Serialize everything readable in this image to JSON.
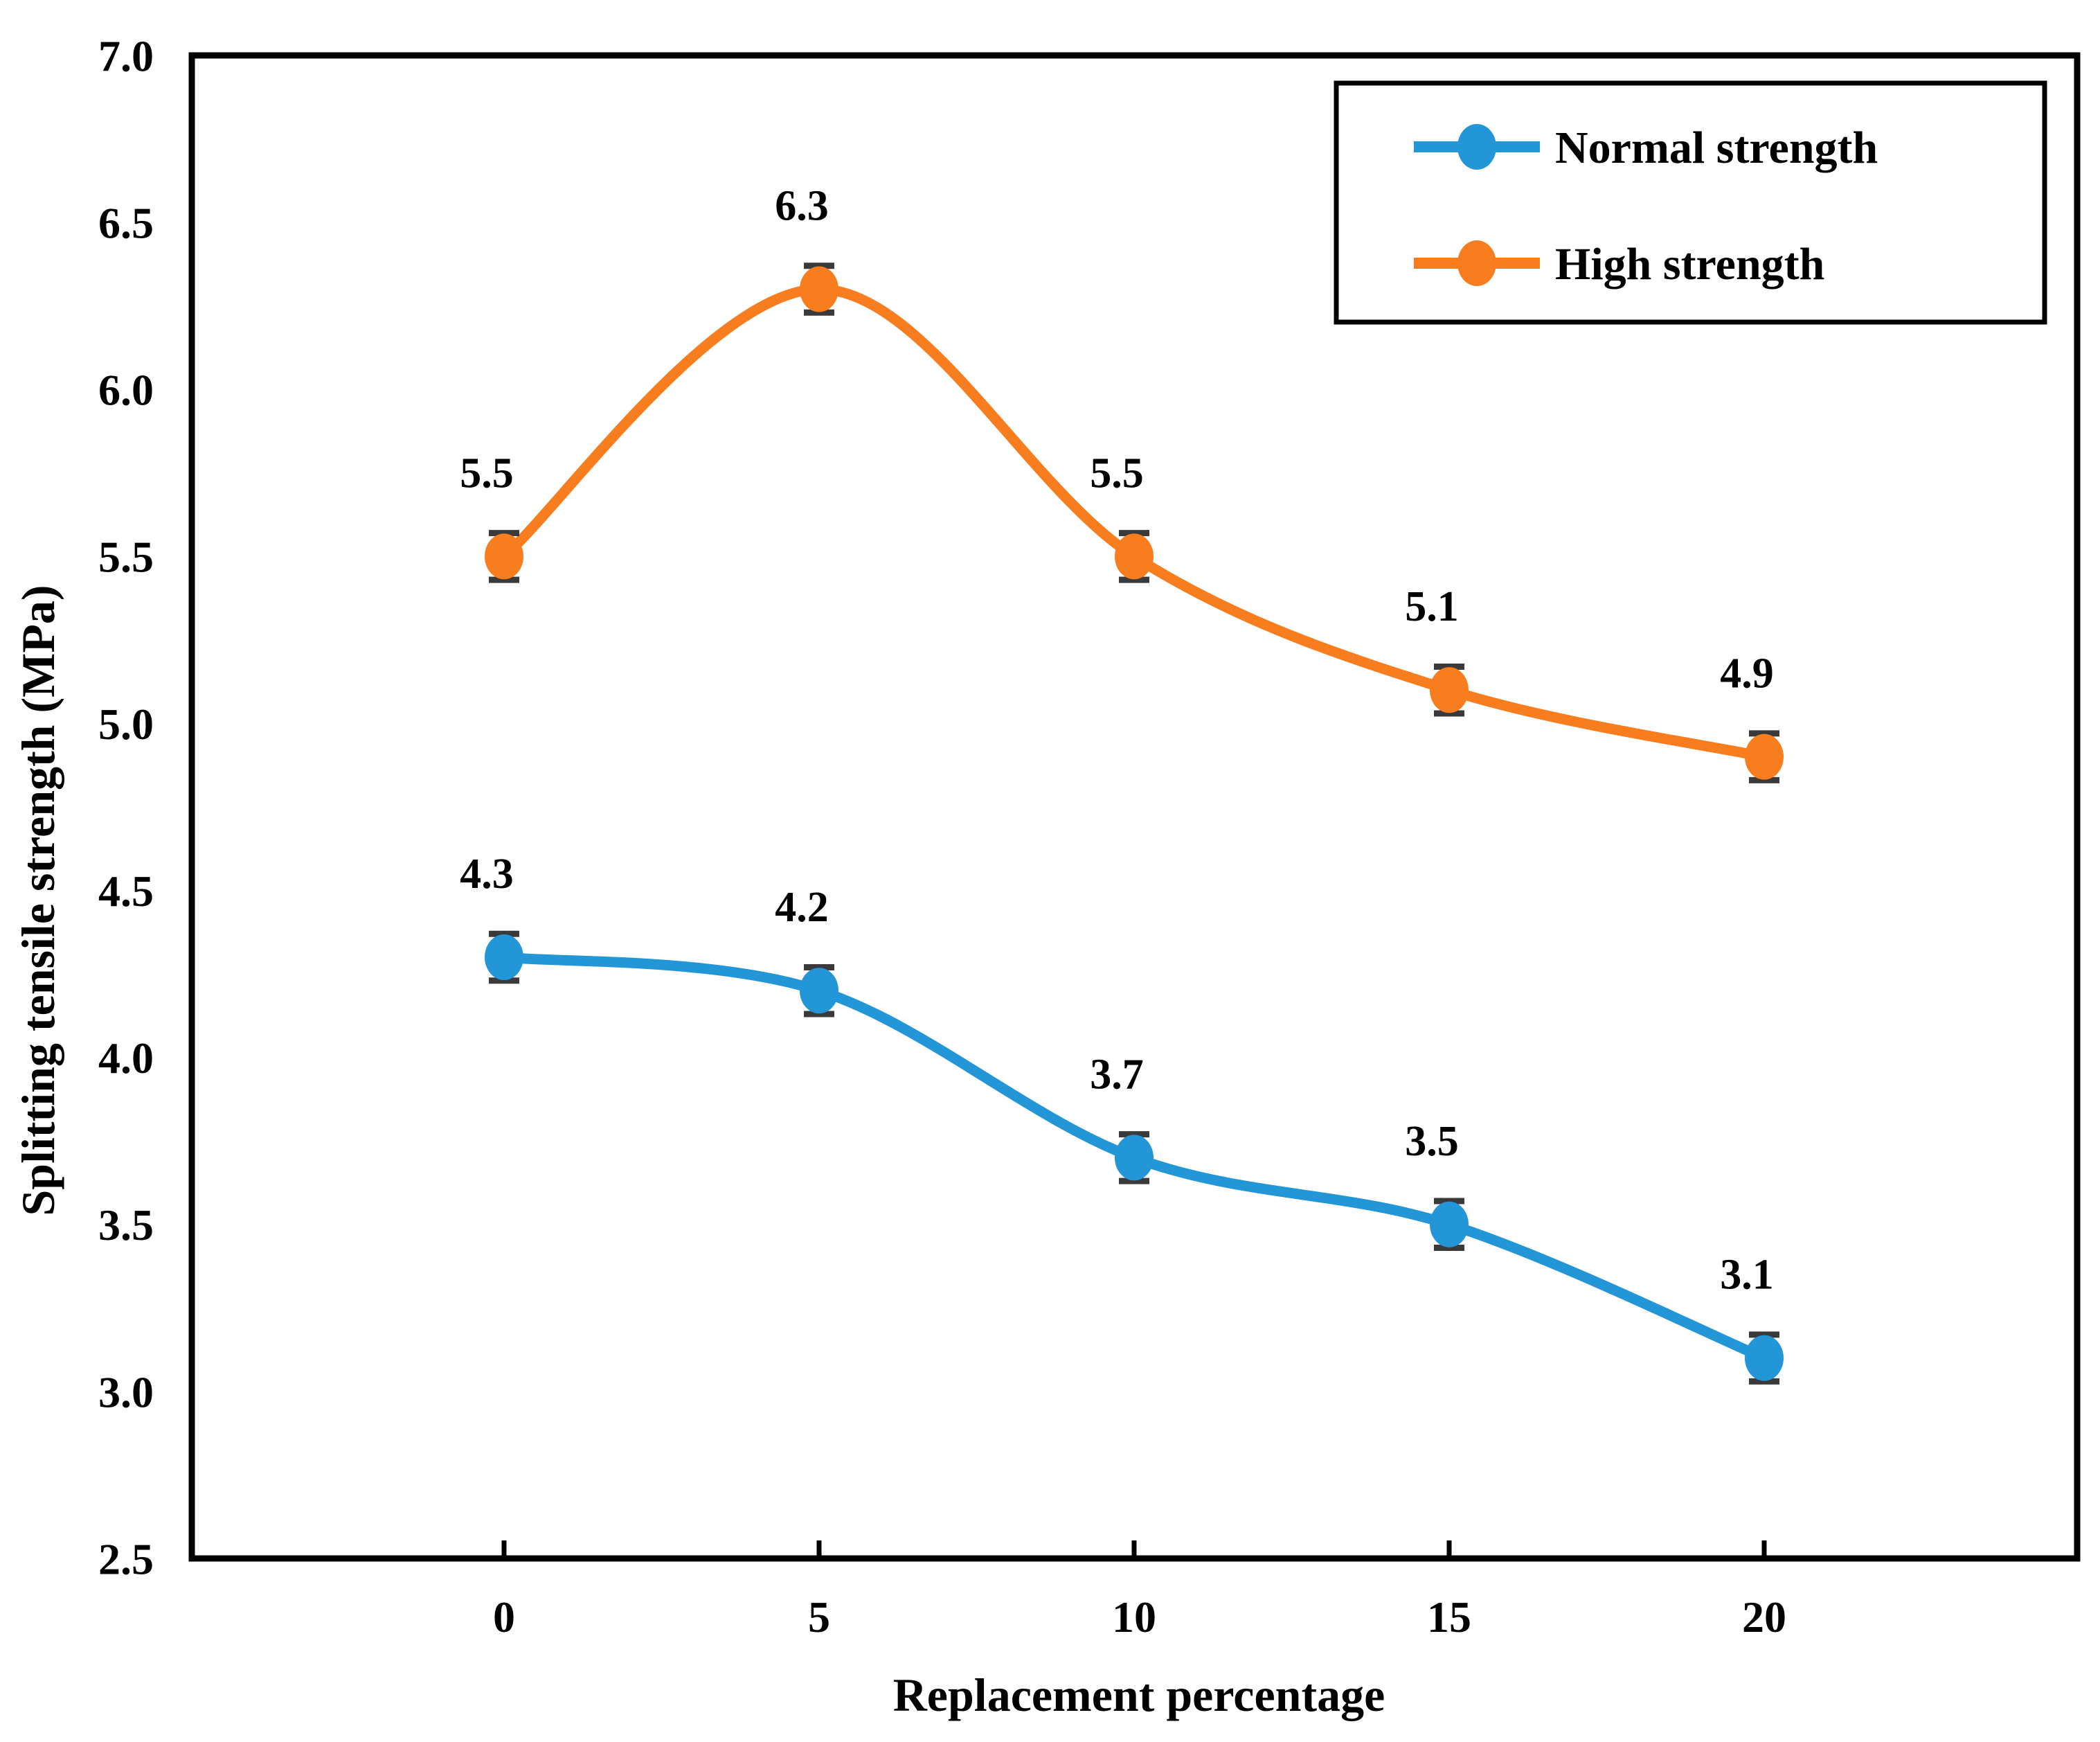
{
  "chart_data": {
    "type": "line",
    "title": "",
    "x": [
      0,
      5,
      10,
      15,
      20
    ],
    "xticks": [
      "0",
      "5",
      "10",
      "15",
      "20"
    ],
    "yticks": [
      "2.5",
      "3.0",
      "3.5",
      "4.0",
      "4.5",
      "5.0",
      "5.5",
      "6.0",
      "6.5",
      "7.0"
    ],
    "ylim": [
      2.5,
      7.0
    ],
    "xlabel": "Replacement percentage",
    "ylabel": "Splitting tensile strength (MPa)",
    "grid": false,
    "legend_position": "top-right",
    "line_style": "smooth",
    "marker": "circle",
    "error_bar_color": "#3A3A3A",
    "axis_color": "#000000",
    "background_color": "#FFFFFF",
    "series": [
      {
        "name": "Normal strength",
        "color": "#2396D8",
        "values": [
          4.3,
          4.2,
          3.7,
          3.5,
          3.1
        ],
        "point_labels": [
          "4.3",
          "4.2",
          "3.7",
          "3.5",
          "3.1"
        ],
        "error_bar": 0.07
      },
      {
        "name": "High strength",
        "color": "#F87D1F",
        "values": [
          5.5,
          6.3,
          5.5,
          5.1,
          4.9
        ],
        "point_labels": [
          "5.5",
          "6.3",
          "5.5",
          "5.1",
          "4.9"
        ],
        "error_bar": 0.07
      }
    ]
  }
}
